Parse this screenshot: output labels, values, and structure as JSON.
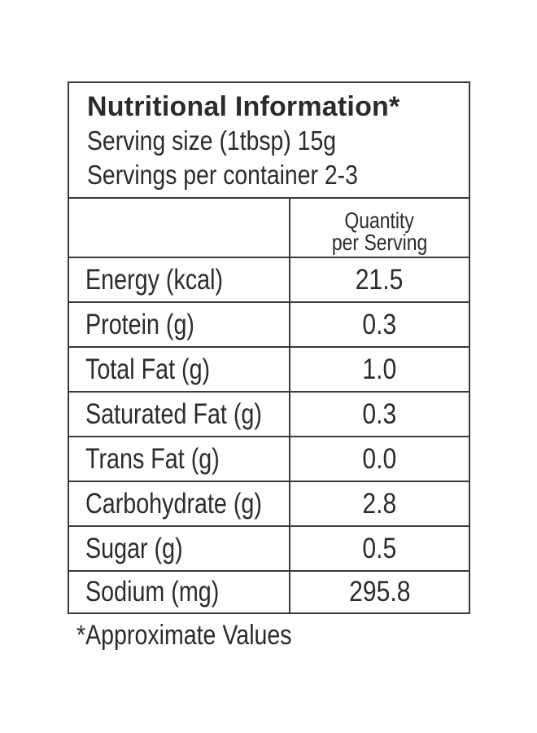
{
  "label": {
    "title": "Nutritional Information*",
    "serving_size": "Serving size (1tbsp) 15g",
    "servings_per_container": "Servings per container 2-3",
    "column_header_line1": "Quantity",
    "column_header_line2": "per Serving",
    "rows": [
      {
        "nutrient": "Energy (kcal)",
        "value": "21.5"
      },
      {
        "nutrient": "Protein (g)",
        "value": "0.3"
      },
      {
        "nutrient": "Total Fat (g)",
        "value": "1.0"
      },
      {
        "nutrient": "Saturated Fat (g)",
        "value": "0.3"
      },
      {
        "nutrient": "Trans Fat (g)",
        "value": "0.0"
      },
      {
        "nutrient": "Carbohydrate (g)",
        "value": "2.8"
      },
      {
        "nutrient": "Sugar (g)",
        "value": "0.5"
      },
      {
        "nutrient": "Sodium (mg)",
        "value": "295.8"
      }
    ],
    "footnote": "*Approximate Values"
  }
}
